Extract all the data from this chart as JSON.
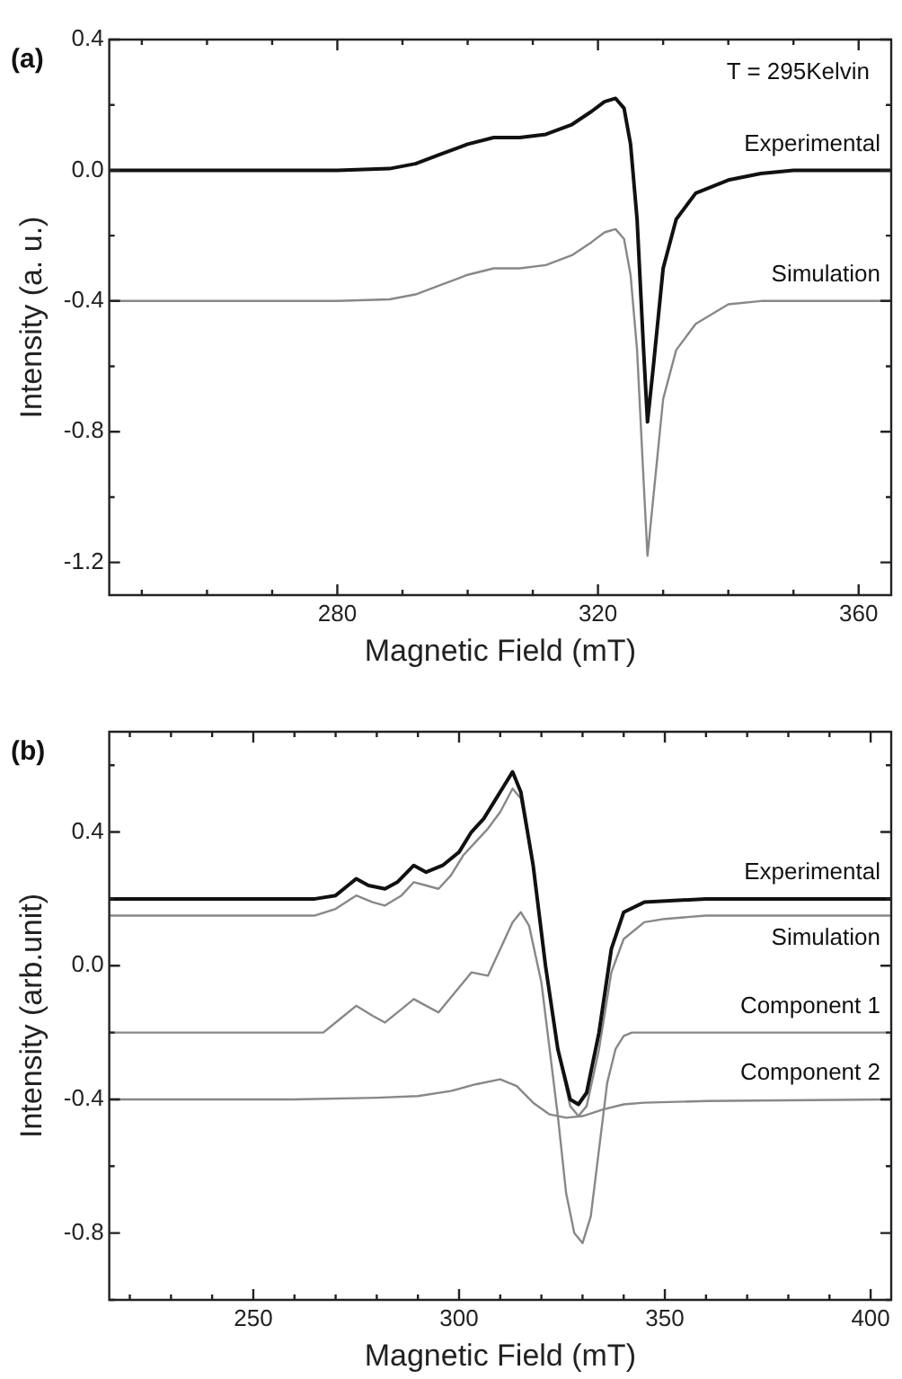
{
  "chart_data": [
    {
      "type": "line",
      "title": "(a)",
      "xlabel": "Magnetic Field (mT)",
      "ylabel": "Intensity (a. u.)",
      "annotations": [
        "T = 295Kelvin"
      ],
      "xlim": [
        245,
        365
      ],
      "ylim": [
        -1.3,
        0.4
      ],
      "xticks": [
        {
          "value": 250,
          "label": null
        },
        {
          "value": 260,
          "label": null
        },
        {
          "value": 270,
          "label": null
        },
        280,
        {
          "value": 290,
          "label": null
        },
        {
          "value": 300,
          "label": null
        },
        {
          "value": 310,
          "label": null
        },
        320,
        {
          "value": 330,
          "label": null
        },
        {
          "value": 340,
          "label": null
        },
        {
          "value": 350,
          "label": null
        },
        360
      ],
      "yticks": [
        {
          "value": -1.2,
          "label": "-1.2"
        },
        {
          "value": -1.0,
          "label": null
        },
        {
          "value": -0.8,
          "label": "-0.8"
        },
        {
          "value": -0.6,
          "label": null
        },
        {
          "value": -0.4,
          "label": "-0.4"
        },
        {
          "value": -0.2,
          "label": null
        },
        {
          "value": 0,
          "label": "0.0"
        },
        {
          "value": 0.2,
          "label": null
        },
        {
          "value": 0.4,
          "label": "0.4"
        }
      ],
      "series": [
        {
          "name": "Experimental",
          "color": "#111111",
          "x": [
            245,
            260,
            280,
            288,
            292,
            296,
            300,
            304,
            308,
            312,
            316,
            319,
            321,
            322.7,
            324,
            325,
            326,
            327,
            327.6,
            328.5,
            330,
            332,
            335,
            340,
            345,
            350,
            360,
            365
          ],
          "values": [
            0,
            0,
            0,
            0.005,
            0.02,
            0.05,
            0.08,
            0.1,
            0.1,
            0.11,
            0.14,
            0.18,
            0.21,
            0.22,
            0.19,
            0.08,
            -0.15,
            -0.55,
            -0.77,
            -0.6,
            -0.3,
            -0.15,
            -0.07,
            -0.03,
            -0.01,
            0,
            0,
            0
          ]
        },
        {
          "name": "Simulation",
          "color": "#888888",
          "x": [
            245,
            260,
            280,
            288,
            292,
            296,
            300,
            304,
            308,
            312,
            316,
            319,
            321,
            322.7,
            324,
            325,
            326,
            327,
            327.6,
            328.5,
            330,
            332,
            335,
            340,
            345,
            350,
            360,
            365
          ],
          "values": [
            -0.4,
            -0.4,
            -0.4,
            -0.395,
            -0.38,
            -0.35,
            -0.32,
            -0.3,
            -0.3,
            -0.29,
            -0.26,
            -0.22,
            -0.19,
            -0.18,
            -0.21,
            -0.32,
            -0.55,
            -0.95,
            -1.18,
            -1.0,
            -0.7,
            -0.55,
            -0.47,
            -0.41,
            -0.4,
            -0.4,
            -0.4,
            -0.4
          ]
        }
      ]
    },
    {
      "type": "line",
      "title": "(b)",
      "xlabel": "Magnetic Field (mT)",
      "ylabel": "Intensity (arb.unit)",
      "xlim": [
        215,
        405
      ],
      "ylim": [
        -1.0,
        0.7
      ],
      "xticks": [
        {
          "value": 220,
          "label": null
        },
        {
          "value": 230,
          "label": null
        },
        {
          "value": 240,
          "label": null
        },
        250,
        {
          "value": 260,
          "label": null
        },
        {
          "value": 270,
          "label": null
        },
        {
          "value": 280,
          "label": null
        },
        {
          "value": 290,
          "label": null
        },
        300,
        {
          "value": 310,
          "label": null
        },
        {
          "value": 320,
          "label": null
        },
        {
          "value": 330,
          "label": null
        },
        {
          "value": 340,
          "label": null
        },
        350,
        {
          "value": 360,
          "label": null
        },
        {
          "value": 370,
          "label": null
        },
        {
          "value": 380,
          "label": null
        },
        {
          "value": 390,
          "label": null
        },
        400
      ],
      "yticks": [
        {
          "value": -1.0,
          "label": null
        },
        {
          "value": -0.8,
          "label": "-0.8"
        },
        {
          "value": -0.6,
          "label": null
        },
        {
          "value": -0.4,
          "label": "-0.4"
        },
        {
          "value": -0.2,
          "label": null
        },
        {
          "value": 0,
          "label": "0.0"
        },
        {
          "value": 0.2,
          "label": null
        },
        {
          "value": 0.4,
          "label": "0.4"
        },
        {
          "value": 0.6,
          "label": null
        }
      ],
      "series": [
        {
          "name": "Experimental",
          "color": "#111111",
          "x": [
            215,
            230,
            250,
            265,
            270,
            273,
            275,
            278,
            282,
            285,
            289,
            292,
            296,
            300,
            303,
            306,
            309,
            311,
            313,
            315,
            318,
            321,
            324,
            327,
            329,
            331,
            334,
            337,
            340,
            345,
            360,
            380,
            405
          ],
          "values": [
            0.2,
            0.2,
            0.2,
            0.2,
            0.21,
            0.24,
            0.26,
            0.24,
            0.23,
            0.25,
            0.3,
            0.28,
            0.3,
            0.34,
            0.4,
            0.44,
            0.5,
            0.54,
            0.58,
            0.52,
            0.3,
            0.0,
            -0.25,
            -0.4,
            -0.415,
            -0.38,
            -0.2,
            0.05,
            0.16,
            0.19,
            0.2,
            0.2,
            0.2
          ]
        },
        {
          "name": "Simulation",
          "color": "#888888",
          "x": [
            215,
            250,
            265,
            270,
            275,
            279,
            282,
            286,
            289,
            292,
            295,
            298,
            301,
            304,
            307,
            310,
            313,
            315,
            318,
            321,
            324,
            327,
            329,
            331,
            334,
            337,
            340,
            345,
            350,
            360,
            405
          ],
          "values": [
            0.15,
            0.15,
            0.15,
            0.17,
            0.21,
            0.19,
            0.18,
            0.21,
            0.25,
            0.24,
            0.23,
            0.27,
            0.33,
            0.37,
            0.41,
            0.46,
            0.53,
            0.5,
            0.3,
            0.0,
            -0.25,
            -0.42,
            -0.45,
            -0.42,
            -0.25,
            -0.02,
            0.08,
            0.13,
            0.14,
            0.15,
            0.15
          ]
        },
        {
          "name": "Component 1",
          "color": "#888888",
          "x": [
            215,
            250,
            267,
            271,
            275,
            279,
            282,
            286,
            289,
            292,
            295,
            299,
            303,
            307,
            310,
            313,
            315,
            317,
            320,
            322,
            324,
            326,
            328,
            330,
            332,
            334,
            336,
            338,
            340,
            342,
            345,
            360,
            405
          ],
          "values": [
            -0.2,
            -0.2,
            -0.2,
            -0.16,
            -0.12,
            -0.15,
            -0.17,
            -0.13,
            -0.1,
            -0.12,
            -0.14,
            -0.08,
            -0.02,
            -0.03,
            0.05,
            0.13,
            0.16,
            0.12,
            -0.05,
            -0.25,
            -0.45,
            -0.68,
            -0.8,
            -0.83,
            -0.75,
            -0.55,
            -0.35,
            -0.25,
            -0.21,
            -0.2,
            -0.2,
            -0.2,
            -0.2
          ]
        },
        {
          "name": "Component 2",
          "color": "#888888",
          "x": [
            215,
            260,
            280,
            290,
            298,
            304,
            310,
            314,
            318,
            322,
            326,
            330,
            335,
            340,
            345,
            360,
            405
          ],
          "values": [
            -0.4,
            -0.4,
            -0.395,
            -0.39,
            -0.375,
            -0.355,
            -0.34,
            -0.36,
            -0.41,
            -0.445,
            -0.455,
            -0.45,
            -0.43,
            -0.415,
            -0.41,
            -0.405,
            -0.4
          ]
        }
      ]
    }
  ]
}
